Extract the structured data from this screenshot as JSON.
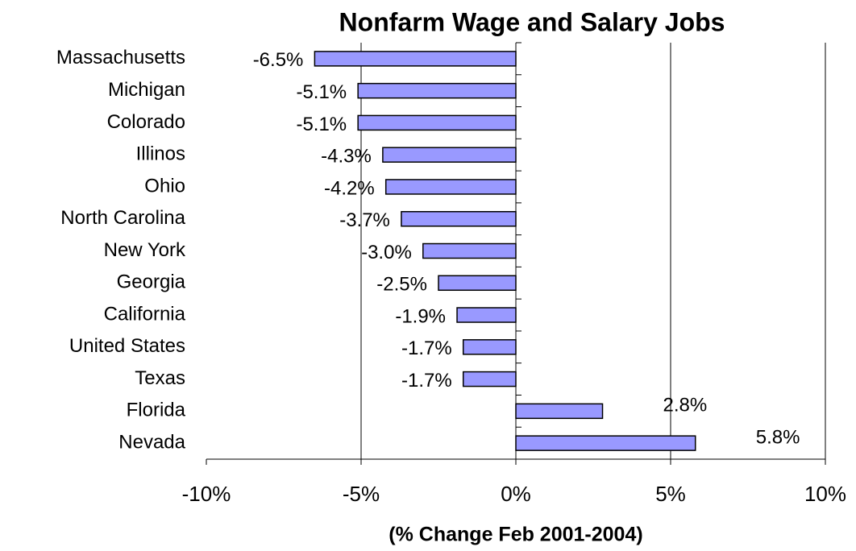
{
  "chart_data": {
    "type": "bar",
    "orientation": "horizontal",
    "title": "Nonfarm Wage and Salary Jobs",
    "x_label": "(% Change Feb 2001-2004)",
    "categories": [
      "Massachusetts",
      "Michigan",
      "Colorado",
      "Illinos",
      "Ohio",
      "North Carolina",
      "New York",
      "Georgia",
      "California",
      "United States",
      "Texas",
      "Florida",
      "Nevada"
    ],
    "values": [
      -6.5,
      -5.1,
      -5.1,
      -4.3,
      -4.2,
      -3.7,
      -3.0,
      -2.5,
      -1.9,
      -1.7,
      -1.7,
      2.8,
      5.8
    ],
    "value_labels": [
      "-6.5%",
      "-5.1%",
      "-5.1%",
      "-4.3%",
      "-4.2%",
      "-3.7%",
      "-3.0%",
      "-2.5%",
      "-1.9%",
      "-1.7%",
      "-1.7%",
      "2.8%",
      "5.8%"
    ],
    "color": "#9999ff",
    "xlim": [
      -10,
      10
    ],
    "xticks": [
      {
        "value": -10,
        "label": "-10%"
      },
      {
        "value": -5,
        "label": "-5%"
      },
      {
        "value": 0,
        "label": "0%"
      },
      {
        "value": 5,
        "label": "5%"
      },
      {
        "value": 10,
        "label": "10%"
      }
    ],
    "grid": true
  }
}
